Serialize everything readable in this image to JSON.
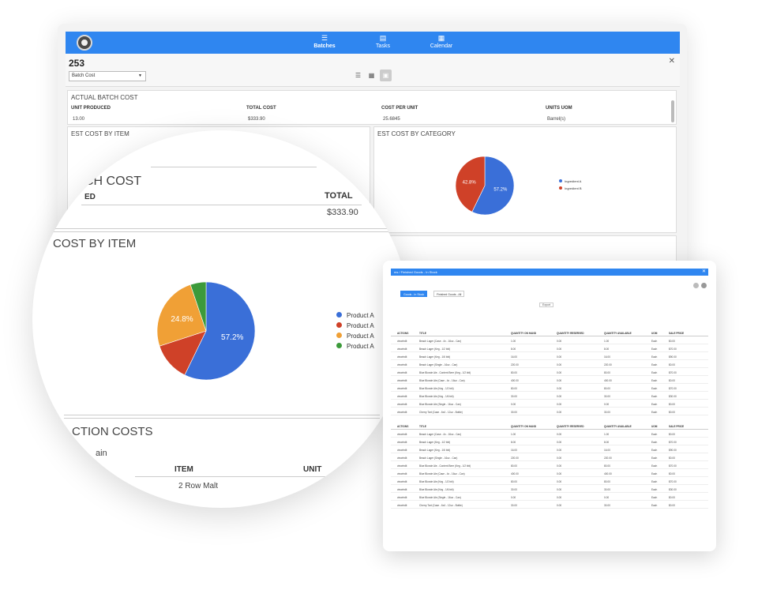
{
  "nav": {
    "items": [
      {
        "label": "Batches",
        "icon": "list-icon"
      },
      {
        "label": "Tasks",
        "icon": "tasks-icon"
      },
      {
        "label": "Calendar",
        "icon": "calendar-icon"
      }
    ]
  },
  "batch": {
    "number": "253",
    "view_select": "Batch Cost"
  },
  "actual_cost": {
    "title": "ACTUAL BATCH COST",
    "headers": [
      "UNIT PRODUCED",
      "TOTAL COST",
      "COST PER UNIT",
      "UNITS UOM"
    ],
    "values": [
      "13.00",
      "$333.90",
      "25.6845",
      "Barrel(s)"
    ]
  },
  "est_cost_by_item": {
    "title": "EST COST BY ITEM"
  },
  "est_cost_by_category": {
    "title": "EST COST BY CATEGORY",
    "legend": [
      "Ingredient A",
      "Ingredient B"
    ],
    "slices": [
      {
        "label": "57.2%",
        "value": 57.2,
        "color": "#3a6fd8"
      },
      {
        "label": "42.8%",
        "value": 42.8,
        "color": "#cf4128"
      }
    ]
  },
  "zoom": {
    "batch_cost_title": "CH COST",
    "col_left": "ED",
    "col_total": "TOTAL",
    "total_value": "$333.90",
    "cost_by_item_title": "COST BY ITEM",
    "production_costs_title": "CTION COSTS",
    "grain_label": "ain",
    "item_header": "ITEM",
    "unit_header": "UNIT",
    "item_value": "2 Row Malt"
  },
  "chart_data": {
    "type": "pie",
    "values": [
      57.2,
      12.8,
      24.8,
      5.2
    ],
    "labels": [
      "57.2%",
      "",
      "24.8%",
      ""
    ],
    "legend": [
      "Product A",
      "Product A",
      "Product A",
      "Product A"
    ],
    "colors": [
      "#3a6fd8",
      "#cf4128",
      "#f0a036",
      "#3c9a3a"
    ]
  },
  "finished_goods": {
    "title": "ms / Finished Goods - In Stock",
    "tabs": [
      "Goods - In Stock",
      "Finished Goods - All"
    ],
    "export_label": "Export",
    "headers": [
      "ACTIONS",
      "TITLE",
      "QUANTITY ON HAND",
      "QUANTITY RESERVED",
      "QUANTITY AVAILABLE",
      "UOM",
      "SALE PRICE"
    ],
    "rows": [
      [
        "Beach Lager (Case - 4x - 16oz - Can)",
        "1.00",
        "0.00",
        "1.00",
        "Each",
        "$0.00"
      ],
      [
        "Beach Lager (Keg - 1/2 bbl)",
        "8.00",
        "0.00",
        "8.00",
        "Each",
        "$70.00"
      ],
      [
        "Beach Lager (Keg - 1/6 bbl)",
        "16.00",
        "0.00",
        "16.00",
        "Each",
        "$90.00"
      ],
      [
        "Beach Lager (Single - 16oz - Can)",
        "220.00",
        "0.00",
        "220.00",
        "Each",
        "$0.00"
      ],
      [
        "Blue Blonde Ale - Content Beer (Keg - 1/2 bbl)",
        "80.00",
        "0.00",
        "80.00",
        "Each",
        "$70.00"
      ],
      [
        "Blue Blonde Ale (Case - 4x - 16oz - Can)",
        "400.00",
        "0.00",
        "400.00",
        "Each",
        "$0.00"
      ],
      [
        "Blue Blonde Ale (Keg - 1/2 bbl)",
        "80.00",
        "0.00",
        "80.00",
        "Each",
        "$70.00"
      ],
      [
        "Blue Blonde Ale (Keg - 1/6 bbl)",
        "30.00",
        "0.00",
        "30.00",
        "Each",
        "$30.00"
      ],
      [
        "Blue Blonde Ale (Single - 16oz - Can)",
        "0.00",
        "0.00",
        "0.00",
        "Each",
        "$0.00"
      ],
      [
        "Cherry Tart (Case - 6x4 - 12oz - Bottle)",
        "30.00",
        "0.00",
        "30.00",
        "Each",
        "$0.00"
      ]
    ]
  }
}
